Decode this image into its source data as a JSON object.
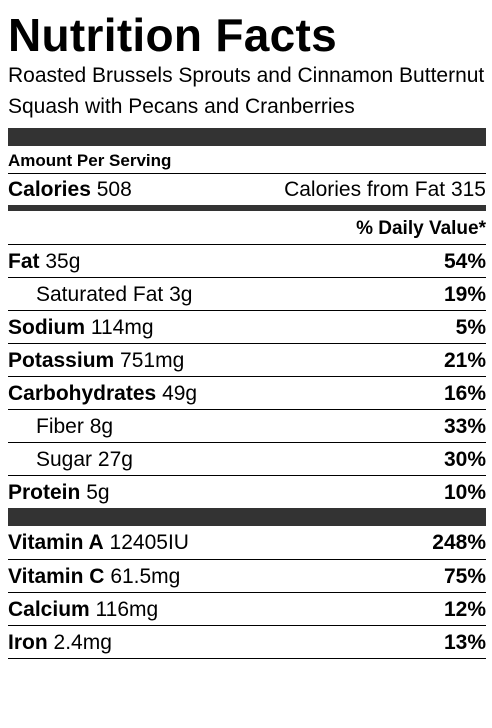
{
  "title": "Nutrition Facts",
  "recipe_name": "Roasted Brussels Sprouts and Cinnamon Butternut Squash with Pecans and Cranberries",
  "amount_per_serving": "Amount Per Serving",
  "calories": {
    "label": "Calories",
    "value": "508"
  },
  "calories_from_fat": {
    "label": "Calories from Fat",
    "value": "315"
  },
  "daily_value_header": "% Daily Value*",
  "nutrients": [
    {
      "name": "Fat",
      "amount": "35g",
      "percent": "54%"
    },
    {
      "name": "Saturated Fat",
      "amount": "3g",
      "percent": "19%"
    },
    {
      "name": "Sodium",
      "amount": "114mg",
      "percent": "5%"
    },
    {
      "name": "Potassium",
      "amount": "751mg",
      "percent": "21%"
    },
    {
      "name": "Carbohydrates",
      "amount": "49g",
      "percent": "16%"
    },
    {
      "name": "Fiber",
      "amount": "8g",
      "percent": "33%"
    },
    {
      "name": "Sugar",
      "amount": "27g",
      "percent": "30%"
    },
    {
      "name": "Protein",
      "amount": "5g",
      "percent": "10%"
    }
  ],
  "vitamins": [
    {
      "name": "Vitamin A",
      "amount": "12405IU",
      "percent": "248%"
    },
    {
      "name": "Vitamin C",
      "amount": "61.5mg",
      "percent": "75%"
    },
    {
      "name": "Calcium",
      "amount": "116mg",
      "percent": "12%"
    },
    {
      "name": "Iron",
      "amount": "2.4mg",
      "percent": "13%"
    }
  ],
  "colors": {
    "bar": "#333333",
    "text": "#000000",
    "background": "#ffffff"
  }
}
